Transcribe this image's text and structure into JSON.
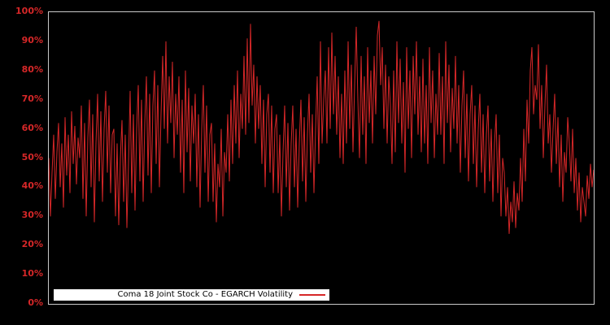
{
  "colors": {
    "background": "#000000",
    "axis_frame": "#c9c9c9",
    "series_red": "#d62728",
    "tick_label_red": "#d62728",
    "legend_background": "#ffffff",
    "legend_text": "#000000"
  },
  "legend": {
    "label": "Coma 18 Joint Stock Co - EGARCH Volatility"
  },
  "chart_data": {
    "type": "line",
    "title": "",
    "legend_position": "lower-left",
    "grid": false,
    "background": "black",
    "x_axis_labels": "none",
    "ylim": [
      0,
      100
    ],
    "yticks_pct": [
      100,
      90,
      80,
      70,
      60,
      50,
      40,
      30,
      20,
      10,
      0
    ],
    "ytick_labels": [
      "100%",
      "90%",
      "80%",
      "70%",
      "60%",
      "50%",
      "40%",
      "30%",
      "20%",
      "10%",
      "0%"
    ],
    "series": [
      {
        "name": "Coma 18 Joint Stock Co - EGARCH Volatility",
        "color": "#d62728",
        "unit": "percent",
        "values_pct": [
          50,
          30,
          45,
          58,
          36,
          52,
          62,
          40,
          55,
          33,
          64,
          44,
          58,
          38,
          66,
          48,
          61,
          41,
          57,
          50,
          68,
          36,
          62,
          30,
          57,
          70,
          40,
          65,
          28,
          55,
          72,
          42,
          66,
          35,
          60,
          73,
          45,
          68,
          38,
          58,
          60,
          30,
          55,
          27,
          50,
          63,
          35,
          58,
          26,
          48,
          73,
          38,
          65,
          32,
          60,
          75,
          42,
          70,
          35,
          62,
          78,
          44,
          72,
          38,
          68,
          80,
          48,
          75,
          40,
          65,
          85,
          60,
          90,
          55,
          78,
          62,
          83,
          50,
          72,
          58,
          78,
          45,
          70,
          38,
          80,
          52,
          74,
          42,
          68,
          55,
          72,
          40,
          65,
          33,
          60,
          75,
          45,
          68,
          35,
          58,
          62,
          35,
          55,
          28,
          48,
          40,
          60,
          30,
          52,
          45,
          65,
          42,
          70,
          48,
          75,
          55,
          80,
          50,
          72,
          60,
          85,
          58,
          91,
          62,
          96,
          68,
          82,
          55,
          78,
          60,
          75,
          48,
          70,
          40,
          65,
          72,
          45,
          68,
          38,
          60,
          65,
          38,
          58,
          30,
          52,
          68,
          40,
          62,
          32,
          55,
          68,
          40,
          60,
          33,
          55,
          70,
          42,
          64,
          35,
          58,
          72,
          45,
          65,
          38,
          60,
          78,
          48,
          90,
          55,
          70,
          80,
          55,
          88,
          60,
          93,
          65,
          85,
          58,
          78,
          50,
          72,
          48,
          80,
          55,
          90,
          60,
          82,
          52,
          75,
          95,
          70,
          50,
          85,
          58,
          78,
          48,
          88,
          62,
          80,
          55,
          85,
          65,
          92,
          97,
          75,
          88,
          60,
          82,
          55,
          78,
          68,
          48,
          80,
          52,
          90,
          62,
          84,
          55,
          76,
          45,
          88,
          60,
          80,
          50,
          85,
          65,
          90,
          58,
          78,
          52,
          84,
          55,
          75,
          48,
          88,
          62,
          80,
          50,
          72,
          58,
          86,
          58,
          78,
          48,
          90,
          62,
          82,
          52,
          74,
          60,
          85,
          55,
          75,
          45,
          68,
          80,
          50,
          72,
          42,
          65,
          75,
          48,
          68,
          40,
          60,
          72,
          45,
          65,
          38,
          58,
          68,
          42,
          60,
          35,
          55,
          65,
          38,
          58,
          30,
          50,
          45,
          30,
          40,
          24,
          35,
          28,
          42,
          26,
          38,
          32,
          50,
          35,
          60,
          42,
          70,
          55,
          80,
          88,
          65,
          75,
          70,
          89,
          60,
          75,
          50,
          68,
          82,
          55,
          65,
          45,
          60,
          72,
          48,
          64,
          40,
          58,
          35,
          52,
          45,
          64,
          55,
          42,
          60,
          38,
          50,
          32,
          45,
          28,
          40,
          35,
          30,
          44,
          36,
          48,
          40,
          46
        ]
      }
    ]
  }
}
